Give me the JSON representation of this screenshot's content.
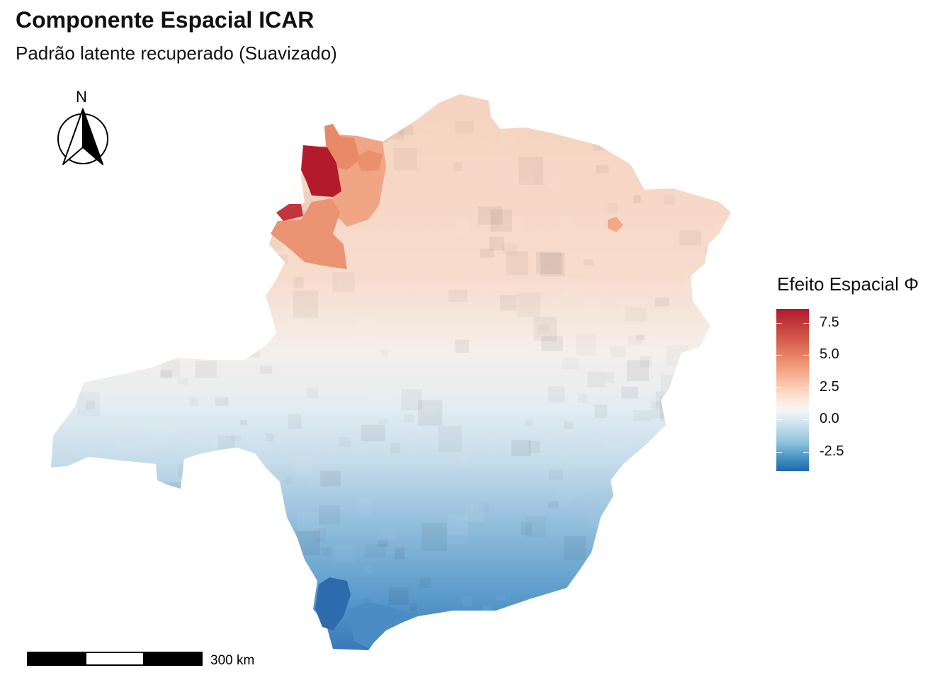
{
  "title": "Componente Espacial ICAR",
  "subtitle": "Padrão latente recuperado (Suavizado)",
  "north_arrow": {
    "label": "N"
  },
  "scale_bar": {
    "label": "300 km"
  },
  "legend": {
    "title": "Efeito Espacial Φ",
    "ticks": [
      "7.5",
      "5.0",
      "2.5",
      "0.0",
      "-2.5"
    ],
    "colors": [
      "#b2182b",
      "#d6604d",
      "#f4a582",
      "#fddbc7",
      "#f7f7f7",
      "#d1e5f0",
      "#92c5de",
      "#4393c3",
      "#2166ac"
    ]
  },
  "map": {
    "region_label": "",
    "value_range": [
      -4,
      8.6
    ]
  }
}
